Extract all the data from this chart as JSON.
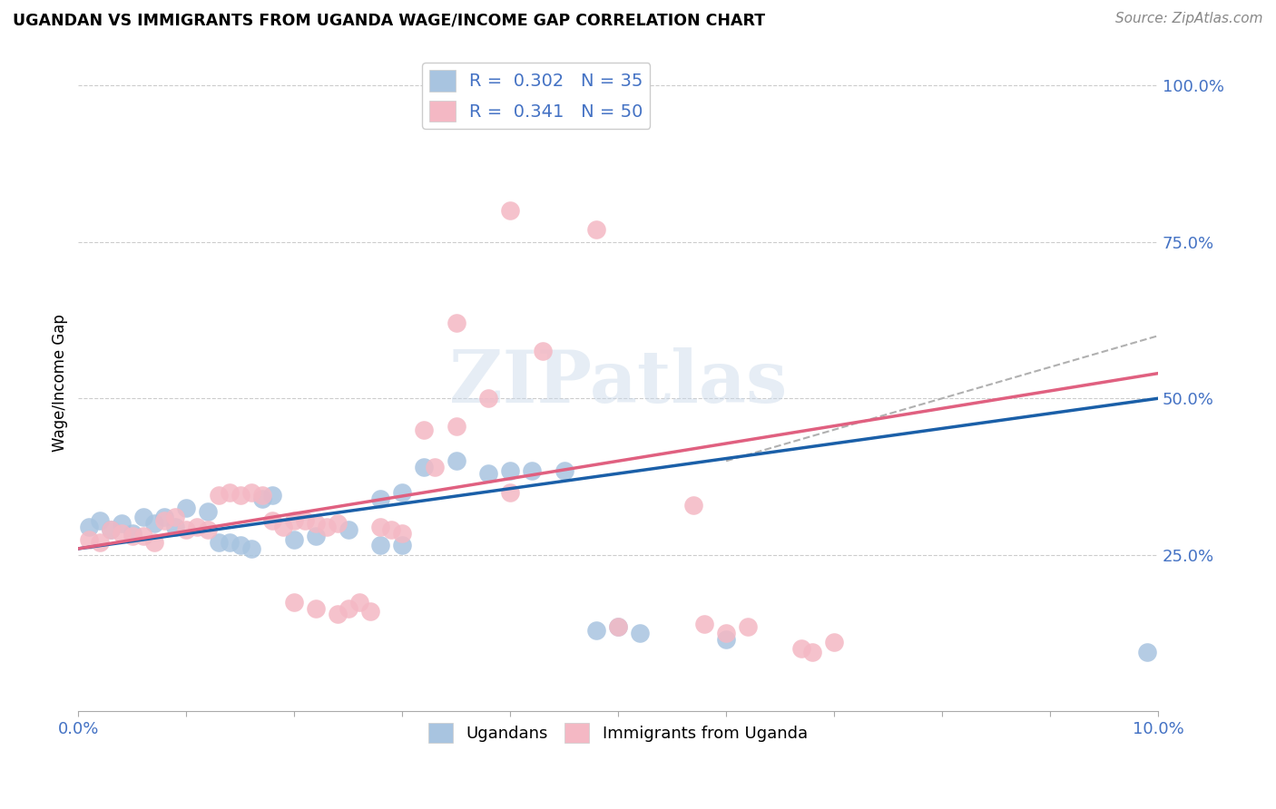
{
  "title": "UGANDAN VS IMMIGRANTS FROM UGANDA WAGE/INCOME GAP CORRELATION CHART",
  "source": "Source: ZipAtlas.com",
  "ylabel": "Wage/Income Gap",
  "legend_foot_1": "Ugandans",
  "legend_foot_2": "Immigrants from Uganda",
  "color_blue": "#a8c4e0",
  "color_pink": "#f4b8c4",
  "trendline_blue": "#1a5fa8",
  "trendline_pink": "#e06080",
  "trendline_dashed_color": "#b0b0b0",
  "watermark": "ZIPatlas",
  "background": "#ffffff",
  "blue_R": 0.302,
  "pink_R": 0.341,
  "blue_N": 35,
  "pink_N": 50,
  "blue_points": [
    [
      0.001,
      0.295
    ],
    [
      0.002,
      0.305
    ],
    [
      0.003,
      0.29
    ],
    [
      0.004,
      0.3
    ],
    [
      0.005,
      0.285
    ],
    [
      0.006,
      0.31
    ],
    [
      0.007,
      0.3
    ],
    [
      0.008,
      0.31
    ],
    [
      0.009,
      0.295
    ],
    [
      0.01,
      0.325
    ],
    [
      0.012,
      0.32
    ],
    [
      0.013,
      0.27
    ],
    [
      0.014,
      0.27
    ],
    [
      0.015,
      0.265
    ],
    [
      0.016,
      0.26
    ],
    [
      0.017,
      0.34
    ],
    [
      0.018,
      0.345
    ],
    [
      0.02,
      0.275
    ],
    [
      0.022,
      0.28
    ],
    [
      0.025,
      0.29
    ],
    [
      0.028,
      0.34
    ],
    [
      0.03,
      0.35
    ],
    [
      0.032,
      0.39
    ],
    [
      0.035,
      0.4
    ],
    [
      0.038,
      0.38
    ],
    [
      0.04,
      0.385
    ],
    [
      0.042,
      0.385
    ],
    [
      0.045,
      0.385
    ],
    [
      0.028,
      0.265
    ],
    [
      0.03,
      0.265
    ],
    [
      0.048,
      0.13
    ],
    [
      0.05,
      0.135
    ],
    [
      0.052,
      0.125
    ],
    [
      0.06,
      0.115
    ],
    [
      0.099,
      0.095
    ]
  ],
  "pink_points": [
    [
      0.001,
      0.275
    ],
    [
      0.002,
      0.27
    ],
    [
      0.003,
      0.29
    ],
    [
      0.004,
      0.285
    ],
    [
      0.005,
      0.28
    ],
    [
      0.006,
      0.28
    ],
    [
      0.007,
      0.27
    ],
    [
      0.008,
      0.305
    ],
    [
      0.009,
      0.31
    ],
    [
      0.01,
      0.29
    ],
    [
      0.011,
      0.295
    ],
    [
      0.012,
      0.29
    ],
    [
      0.013,
      0.345
    ],
    [
      0.014,
      0.35
    ],
    [
      0.015,
      0.345
    ],
    [
      0.016,
      0.35
    ],
    [
      0.017,
      0.345
    ],
    [
      0.018,
      0.305
    ],
    [
      0.019,
      0.295
    ],
    [
      0.02,
      0.305
    ],
    [
      0.021,
      0.305
    ],
    [
      0.022,
      0.3
    ],
    [
      0.023,
      0.295
    ],
    [
      0.024,
      0.3
    ],
    [
      0.025,
      0.165
    ],
    [
      0.026,
      0.175
    ],
    [
      0.027,
      0.16
    ],
    [
      0.028,
      0.295
    ],
    [
      0.029,
      0.29
    ],
    [
      0.03,
      0.285
    ],
    [
      0.032,
      0.45
    ],
    [
      0.033,
      0.39
    ],
    [
      0.035,
      0.455
    ],
    [
      0.038,
      0.5
    ],
    [
      0.04,
      0.35
    ],
    [
      0.02,
      0.175
    ],
    [
      0.022,
      0.165
    ],
    [
      0.024,
      0.155
    ],
    [
      0.048,
      0.77
    ],
    [
      0.04,
      0.8
    ],
    [
      0.035,
      0.62
    ],
    [
      0.043,
      0.575
    ],
    [
      0.05,
      0.135
    ],
    [
      0.06,
      0.125
    ],
    [
      0.07,
      0.11
    ],
    [
      0.057,
      0.33
    ],
    [
      0.067,
      0.1
    ],
    [
      0.068,
      0.095
    ],
    [
      0.062,
      0.135
    ],
    [
      0.058,
      0.14
    ]
  ],
  "blue_trend": [
    0.26,
    0.5
  ],
  "pink_trend": [
    0.26,
    0.54
  ],
  "dashed_trend": [
    0.4,
    0.6
  ],
  "xlim_max": 0.1,
  "ylim_max": 1.05
}
